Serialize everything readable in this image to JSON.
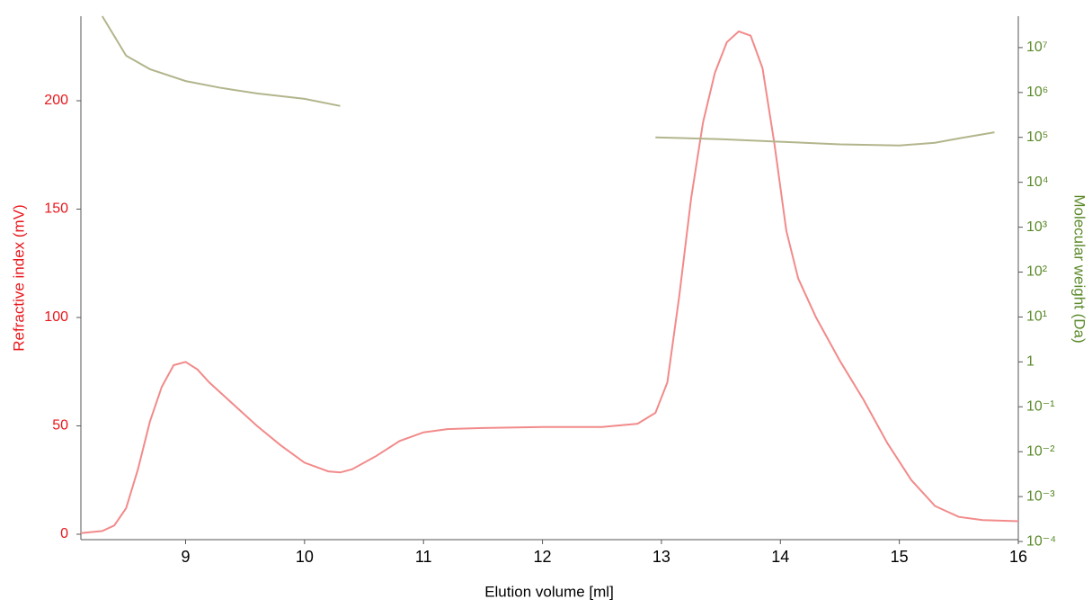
{
  "chart_data": {
    "type": "line",
    "xlabel": "Elution volume [ml]",
    "ylabel": "Refractive index (mV)",
    "y2label": "Molecular weight (Da)",
    "xlim": [
      8.12,
      16
    ],
    "xticks": [
      9,
      10,
      11,
      12,
      13,
      14,
      15,
      16
    ],
    "ylim": [
      -2.5,
      239
    ],
    "yticks": [
      0,
      50,
      100,
      150,
      200
    ],
    "y2lim": [
      0.00011,
      50000000
    ],
    "y2log": true,
    "y2ticks": [
      {
        "value": 0.0001,
        "label": "10⁻⁴"
      },
      {
        "value": 0.001,
        "label": "10⁻³"
      },
      {
        "value": 0.01,
        "label": "10⁻²"
      },
      {
        "value": 0.1,
        "label": "10⁻¹"
      },
      1,
      {
        "value": 10,
        "label": "10¹"
      },
      {
        "value": 100,
        "label": "10²"
      },
      {
        "value": 1000,
        "label": "10³"
      },
      {
        "value": 10000,
        "label": "10⁴"
      },
      {
        "value": 100000,
        "label": "10⁵"
      },
      {
        "value": 1000000,
        "label": "10⁶"
      },
      {
        "value": 10000000,
        "label": "10⁷"
      }
    ],
    "ycolor": "#e8161b",
    "y2color": "#5b8a2a",
    "series": [
      {
        "color": "#f28a8a",
        "x": [
          8.12,
          8.3,
          8.4,
          8.5,
          8.6,
          8.7,
          8.8,
          8.9,
          9.0,
          9.1,
          9.2,
          9.4,
          9.6,
          9.8,
          10.0,
          10.2,
          10.3,
          10.4,
          10.6,
          10.8,
          11.0,
          11.2,
          11.5,
          12.0,
          12.5,
          12.8,
          12.95,
          13.05,
          13.15,
          13.25,
          13.35,
          13.45,
          13.55,
          13.65,
          13.75,
          13.85,
          13.95,
          14.05,
          14.15,
          14.3,
          14.5,
          14.7,
          14.9,
          15.1,
          15.3,
          15.5,
          15.7,
          16.0
        ],
        "values": [
          0.5,
          1.5,
          4,
          12,
          30,
          52,
          68,
          78,
          79.5,
          76,
          70,
          60,
          50,
          41,
          33,
          29,
          28.5,
          30,
          36,
          43,
          47,
          48.5,
          49,
          49.5,
          49.5,
          51,
          56,
          70,
          110,
          155,
          190,
          213,
          227,
          232,
          230,
          215,
          180,
          140,
          118,
          100,
          80,
          62,
          42,
          25,
          13,
          8,
          6.5,
          6
        ]
      },
      {
        "color": "#b3b58c",
        "axis": "y2",
        "x": [
          8.3,
          8.5,
          8.7,
          9.0,
          9.3,
          9.6,
          10.0,
          10.3,
          11.5,
          12.95,
          13.5,
          14.0,
          14.5,
          15.0,
          15.3,
          15.5,
          15.8
        ],
        "values": [
          50000000,
          6600000,
          3300000,
          1800000,
          1260000,
          950000,
          720000,
          500000,
          null,
          100000,
          91000,
          80000,
          70000,
          66000,
          76000,
          95000,
          130000
        ]
      }
    ]
  }
}
